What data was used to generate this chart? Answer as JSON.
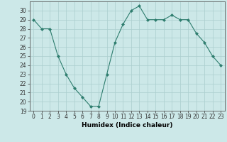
{
  "x": [
    0,
    1,
    2,
    3,
    4,
    5,
    6,
    7,
    8,
    9,
    10,
    11,
    12,
    13,
    14,
    15,
    16,
    17,
    18,
    19,
    20,
    21,
    22,
    23
  ],
  "y": [
    29,
    28,
    28,
    25,
    23,
    21.5,
    20.5,
    19.5,
    19.5,
    23,
    26.5,
    28.5,
    30,
    30.5,
    29,
    29,
    29,
    29.5,
    29,
    29,
    27.5,
    26.5,
    25,
    24
  ],
  "line_color": "#2e7d6e",
  "marker": "D",
  "marker_size": 2,
  "bg_color": "#cce8e8",
  "grid_color": "#aacece",
  "xlabel": "Humidex (Indice chaleur)",
  "ylim": [
    19,
    31
  ],
  "xlim": [
    -0.5,
    23.5
  ],
  "yticks": [
    19,
    20,
    21,
    22,
    23,
    24,
    25,
    26,
    27,
    28,
    29,
    30
  ],
  "xticks": [
    0,
    1,
    2,
    3,
    4,
    5,
    6,
    7,
    8,
    9,
    10,
    11,
    12,
    13,
    14,
    15,
    16,
    17,
    18,
    19,
    20,
    21,
    22,
    23
  ],
  "xlabel_fontsize": 6.5,
  "tick_fontsize": 5.5,
  "linewidth": 0.8
}
